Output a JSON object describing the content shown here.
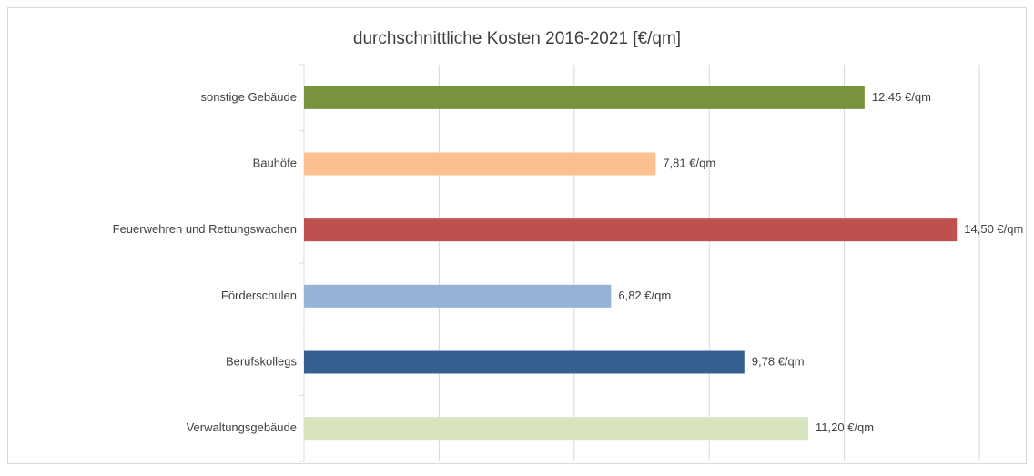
{
  "chart_data": {
    "type": "bar",
    "orientation": "horizontal",
    "title": "durchschnittliche Kosten 2016-2021 [€/qm]",
    "categories": [
      "sonstige Gebäude",
      "Bauhöfe",
      "Feuerwehren und Rettungswachen",
      "Förderschulen",
      "Berufskollegs",
      "Verwaltungsgebäude"
    ],
    "values": [
      12.45,
      7.81,
      14.5,
      6.82,
      9.78,
      11.2
    ],
    "value_labels": [
      "12,45 €/qm",
      "7,81 €/qm",
      "14,50 €/qm",
      "6,82 €/qm",
      "9,78 €/qm",
      "11,20 €/qm"
    ],
    "colors": [
      "#77933c",
      "#fac090",
      "#c0504d",
      "#95b3d7",
      "#366092",
      "#d7e4bd"
    ],
    "xlim": [
      0,
      15
    ],
    "xticks": [
      0,
      3,
      6,
      9,
      12,
      15
    ],
    "grid": true
  }
}
